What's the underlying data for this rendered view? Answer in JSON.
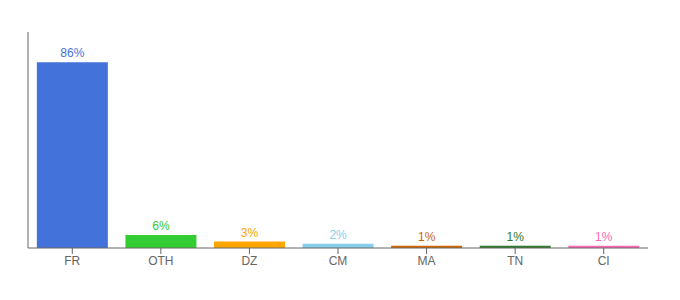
{
  "chart_data": {
    "type": "bar",
    "categories": [
      "FR",
      "OTH",
      "DZ",
      "CM",
      "MA",
      "TN",
      "CI"
    ],
    "values": [
      86,
      6,
      3,
      2,
      1,
      1,
      1
    ],
    "value_labels": [
      "86%",
      "6%",
      "3%",
      "2%",
      "1%",
      "1%",
      "1%"
    ],
    "colors": [
      "#4472db",
      "#33cc33",
      "#ffa500",
      "#87ceeb",
      "#cd6600",
      "#2d7a2d",
      "#ff69b4"
    ],
    "ylim": [
      0,
      100
    ],
    "data_labels": true,
    "tick_labels": "x",
    "grid": false
  }
}
